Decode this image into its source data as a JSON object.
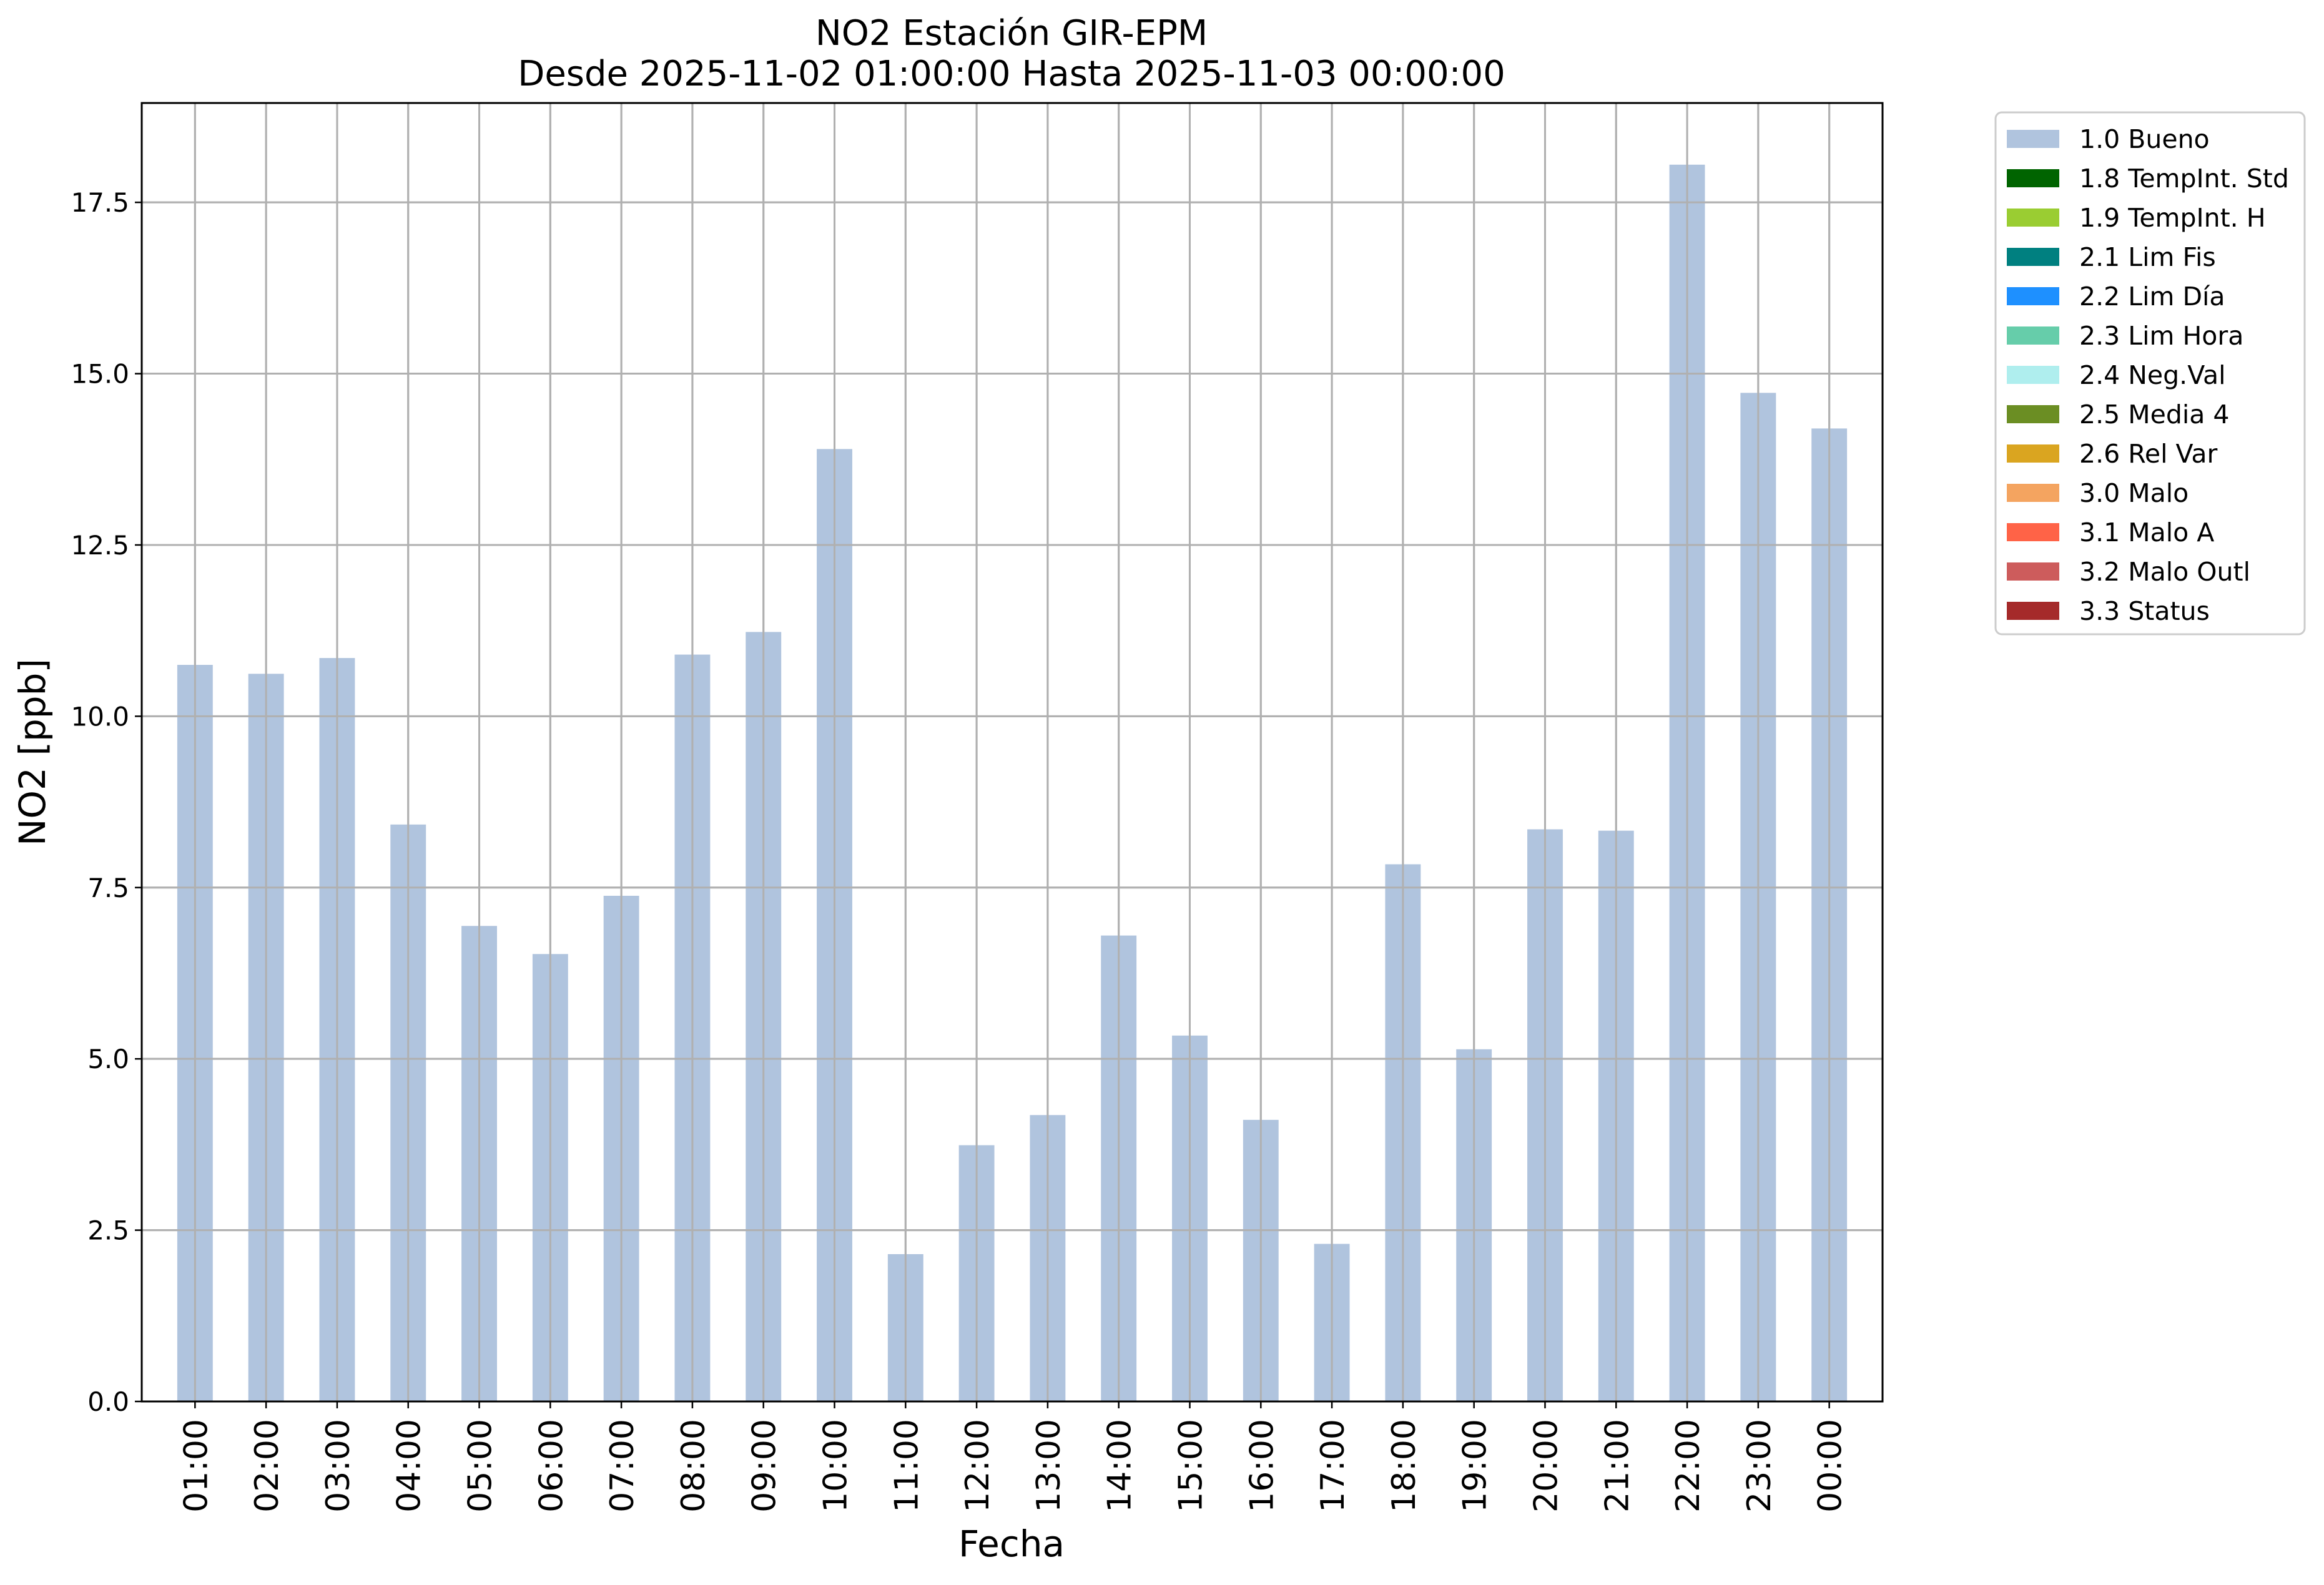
{
  "chart_data": {
    "type": "bar",
    "title": "NO2 Estación GIR-EPM",
    "subtitle": "Desde 2025-11-02 01:00:00 Hasta 2025-11-03 00:00:00",
    "xlabel": "Fecha",
    "ylabel": "NO2 [ppb]",
    "ylim": [
      0,
      18.95
    ],
    "yticks": [
      "0.0",
      "2.5",
      "5.0",
      "7.5",
      "10.0",
      "12.5",
      "15.0",
      "17.5"
    ],
    "categories": [
      "01:00",
      "02:00",
      "03:00",
      "04:00",
      "05:00",
      "06:00",
      "07:00",
      "08:00",
      "09:00",
      "10:00",
      "11:00",
      "12:00",
      "13:00",
      "14:00",
      "15:00",
      "16:00",
      "17:00",
      "18:00",
      "19:00",
      "20:00",
      "21:00",
      "22:00",
      "23:00",
      "00:00"
    ],
    "series": [
      {
        "name": "1.0 Bueno",
        "color": "#b0c4de",
        "values": [
          10.75,
          10.62,
          10.85,
          8.42,
          6.94,
          6.53,
          7.38,
          10.9,
          11.23,
          13.9,
          2.15,
          3.74,
          4.18,
          6.8,
          5.34,
          4.11,
          2.3,
          7.84,
          5.14,
          8.35,
          8.33,
          18.05,
          14.72,
          14.2
        ]
      }
    ],
    "grid": true,
    "legend": {
      "placement": "outside-right-top",
      "entries": [
        {
          "label": "1.0 Bueno",
          "color": "#b0c4de"
        },
        {
          "label": "1.8 TempInt. Std",
          "color": "#006400"
        },
        {
          "label": "1.9 TempInt. H",
          "color": "#9acd32"
        },
        {
          "label": "2.1 Lim Fis",
          "color": "#008080"
        },
        {
          "label": "2.2 Lim Día",
          "color": "#1e90ff"
        },
        {
          "label": "2.3 Lim Hora",
          "color": "#66cdaa"
        },
        {
          "label": "2.4 Neg.Val",
          "color": "#afeeee"
        },
        {
          "label": "2.5 Media 4",
          "color": "#6b8e23"
        },
        {
          "label": "2.6 Rel Var",
          "color": "#daa520"
        },
        {
          "label": "3.0 Malo",
          "color": "#f4a460"
        },
        {
          "label": "3.1 Malo A",
          "color": "#ff6347"
        },
        {
          "label": "3.2 Malo Outl",
          "color": "#cd5c5c"
        },
        {
          "label": "3.3 Status",
          "color": "#a52a2a"
        }
      ]
    }
  }
}
